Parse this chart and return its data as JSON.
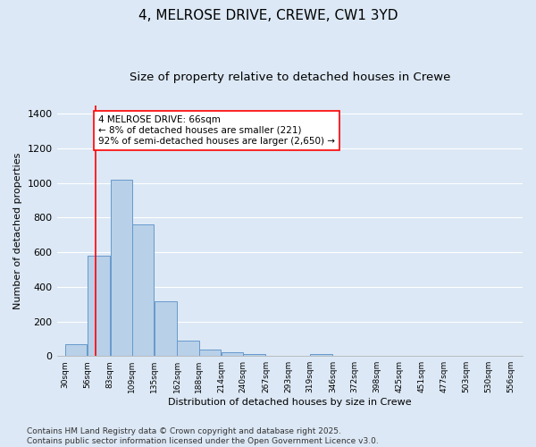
{
  "title": "4, MELROSE DRIVE, CREWE, CW1 3YD",
  "subtitle": "Size of property relative to detached houses in Crewe",
  "xlabel": "Distribution of detached houses by size in Crewe",
  "ylabel": "Number of detached properties",
  "bar_edges": [
    30,
    56,
    83,
    109,
    135,
    162,
    188,
    214,
    240,
    267,
    293,
    319,
    346,
    372,
    398,
    425,
    451,
    477,
    503,
    530,
    556
  ],
  "bar_heights": [
    68,
    580,
    1020,
    760,
    315,
    90,
    38,
    22,
    12,
    0,
    0,
    12,
    0,
    0,
    0,
    0,
    0,
    0,
    0,
    0
  ],
  "bar_color": "#b8d0e8",
  "bar_edge_color": "#6699cc",
  "property_line_x": 66,
  "property_line_color": "red",
  "annotation_text": "4 MELROSE DRIVE: 66sqm\n← 8% of detached houses are smaller (221)\n92% of semi-detached houses are larger (2,650) →",
  "annotation_box_color": "white",
  "annotation_box_edge_color": "red",
  "ylim": [
    0,
    1450
  ],
  "background_color": "#dce8f5",
  "grid_color": "white",
  "footer_text": "Contains HM Land Registry data © Crown copyright and database right 2025.\nContains public sector information licensed under the Open Government Licence v3.0.",
  "title_fontsize": 11,
  "subtitle_fontsize": 9.5,
  "annotation_fontsize": 7.5,
  "footer_fontsize": 6.5,
  "ylabel_fontsize": 8,
  "xlabel_fontsize": 8,
  "ytick_fontsize": 8,
  "xtick_fontsize": 6.5
}
